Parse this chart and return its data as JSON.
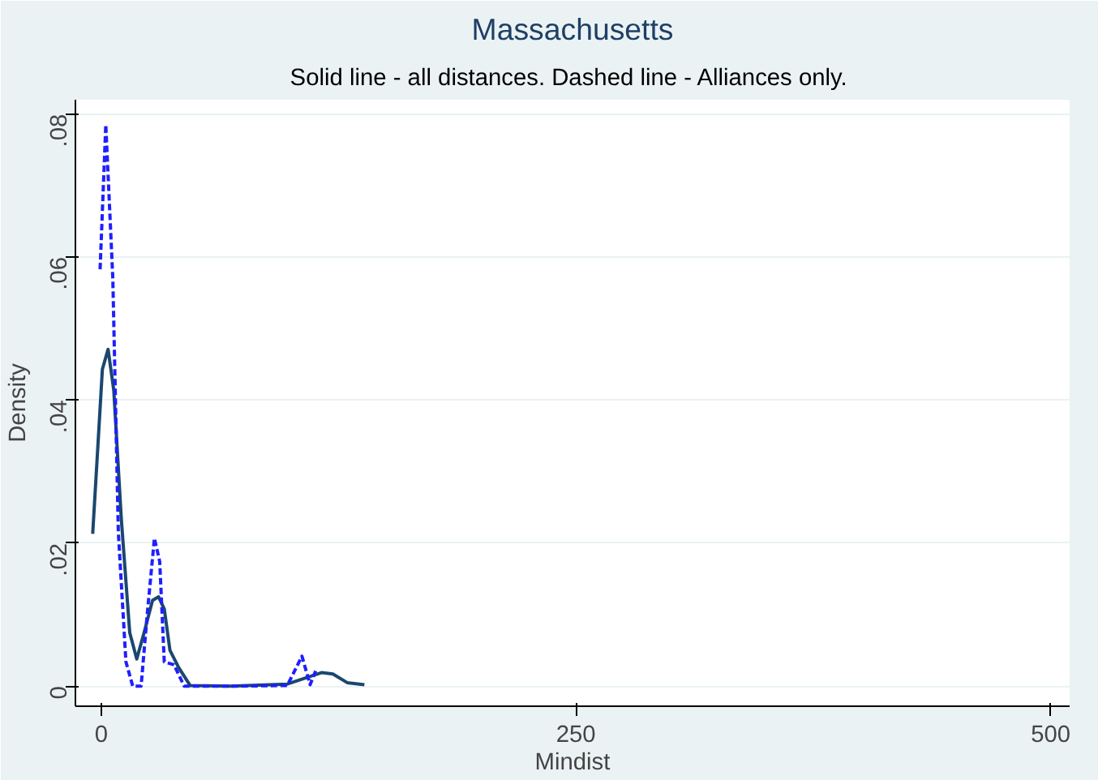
{
  "chart_data": {
    "type": "line",
    "title": "Massachusetts",
    "subtitle": "Solid line - all distances.  Dashed line - Alliances only.",
    "xlabel": "Mindist",
    "ylabel": "Density",
    "xlim": [
      -13.6,
      510
    ],
    "ylim": [
      -0.0028,
      0.082
    ],
    "xticks": [
      0,
      250,
      500
    ],
    "yticks": [
      0,
      {
        "value": 0.02,
        "label": ".02"
      },
      {
        "value": 0.04,
        "label": ".04"
      },
      {
        "value": 0.06,
        "label": ".06"
      },
      {
        "value": 0.08,
        "label": ".08"
      }
    ],
    "grid": "y",
    "marker": "none",
    "series": [
      {
        "color": "#1a476f",
        "line_style": "solid",
        "x": [
          -4.5,
          -1.5,
          0.6,
          3.6,
          6.6,
          10.6,
          15,
          18.7,
          22.6,
          27,
          30.2,
          33.2,
          36.2,
          40.8,
          46.8,
          68,
          98,
          116,
          122,
          129.5,
          138.6
        ],
        "values": [
          0.0213,
          0.0348,
          0.0443,
          0.0471,
          0.0414,
          0.0233,
          0.0075,
          0.0038,
          0.0075,
          0.012,
          0.0125,
          0.0108,
          0.005,
          0.0026,
          0.0001,
          0.0,
          0.0003,
          0.0019,
          0.0017,
          0.0005,
          0.0002
        ]
      },
      {
        "color": "#1f1fff",
        "line_style": "dashed",
        "x": [
          -0.6,
          2.4,
          6.1,
          9,
          13,
          16.6,
          21,
          24.2,
          28,
          30.8,
          33.2,
          38.3,
          43.7,
          70,
          98,
          101,
          105.7,
          110,
          113
        ],
        "values": [
          0.0583,
          0.0785,
          0.057,
          0.0215,
          0.0034,
          0.0,
          0.0,
          0.01,
          0.0207,
          0.0174,
          0.0034,
          0.003,
          0.0,
          0.0,
          0.0001,
          0.0017,
          0.0042,
          0.0002,
          0.0022
        ]
      }
    ]
  }
}
